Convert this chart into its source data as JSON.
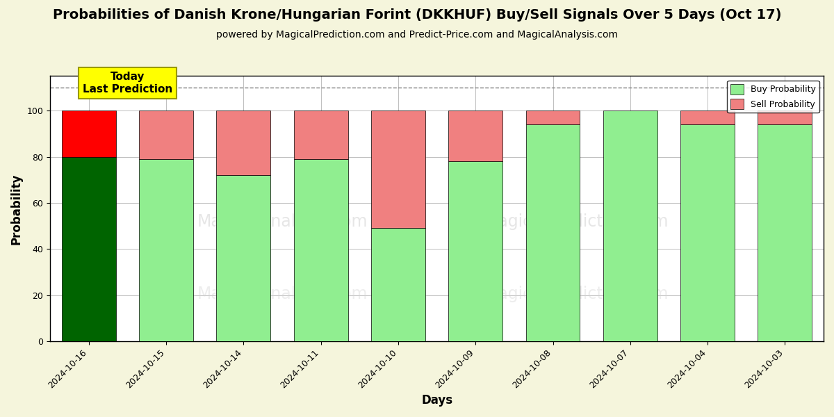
{
  "title": "Probabilities of Danish Krone/Hungarian Forint (DKKHUF) Buy/Sell Signals Over 5 Days (Oct 17)",
  "subtitle": "powered by MagicalPrediction.com and Predict-Price.com and MagicalAnalysis.com",
  "xlabel": "Days",
  "ylabel": "Probability",
  "dates": [
    "2024-10-16",
    "2024-10-15",
    "2024-10-14",
    "2024-10-11",
    "2024-10-10",
    "2024-10-09",
    "2024-10-08",
    "2024-10-07",
    "2024-10-04",
    "2024-10-03"
  ],
  "buy_values": [
    80,
    79,
    72,
    79,
    49,
    78,
    94,
    100,
    94,
    94
  ],
  "sell_values": [
    20,
    21,
    28,
    21,
    51,
    22,
    6,
    0,
    6,
    6
  ],
  "first_bar_buy_color": "#006400",
  "first_bar_sell_color": "#FF0000",
  "other_buy_color": "#90EE90",
  "other_sell_color": "#F08080",
  "annotation_text": "Today\nLast Prediction",
  "annotation_bg_color": "#FFFF00",
  "dashed_line_y": 110,
  "ylim": [
    0,
    115
  ],
  "yticks": [
    0,
    20,
    40,
    60,
    80,
    100
  ],
  "legend_buy_label": "Buy Probability",
  "legend_sell_label": "Sell Probability",
  "title_fontsize": 14,
  "subtitle_fontsize": 10,
  "axis_label_fontsize": 12,
  "tick_fontsize": 9,
  "fig_bg_color": "#f5f5dc",
  "plot_bg_color": "#ffffff"
}
